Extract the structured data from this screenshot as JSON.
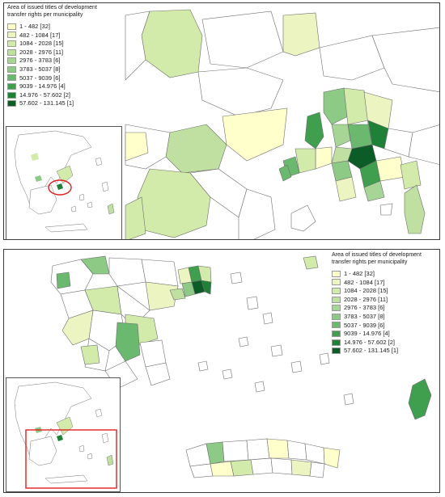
{
  "legend": {
    "title": "Area of issued titles of development transfer rights per municipality",
    "classes": [
      {
        "label": "1 - 482 [32]",
        "color": "#ffffcc"
      },
      {
        "label": "482 - 1084 [17]",
        "color": "#ecf5c2"
      },
      {
        "label": "1084 - 2028 [15]",
        "color": "#d3ebaa"
      },
      {
        "label": "2028 - 2976 [11]",
        "color": "#bfe0a0"
      },
      {
        "label": "2976 - 3783 [6]",
        "color": "#a6d596"
      },
      {
        "label": "3783 - 5037 [8]",
        "color": "#8dca86"
      },
      {
        "label": "5037 - 9039 [6]",
        "color": "#6bb86f"
      },
      {
        "label": "9039 - 14.976 [4]",
        "color": "#3f9f4f"
      },
      {
        "label": "14.976 - 57.602 [2]",
        "color": "#1f8037"
      },
      {
        "label": "57.602 - 131.145 [1]",
        "color": "#0b5c26"
      }
    ]
  },
  "colors": {
    "boundary": "#6d6d6d",
    "land": "#ffffff",
    "inset_highlight": "#e02020"
  }
}
